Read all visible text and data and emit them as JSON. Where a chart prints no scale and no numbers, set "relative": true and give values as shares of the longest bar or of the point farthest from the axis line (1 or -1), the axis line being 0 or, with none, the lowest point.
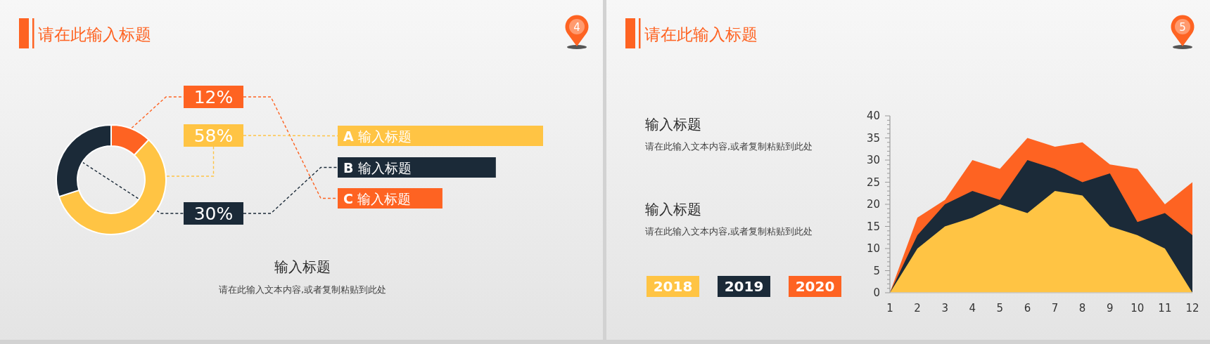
{
  "chart_data": [
    {
      "type": "donut",
      "title": "请在此输入标题",
      "categories": [
        null,
        null,
        null
      ],
      "values": [
        12,
        58,
        30
      ],
      "colors": [
        "#fe6322",
        "#ffc444",
        "#1b2a38"
      ],
      "value_labels": [
        "12%",
        "58%",
        "30%"
      ],
      "annotations": [
        "4",
        "输入标题",
        "请在此输入文本内容,或者复制粘贴到此处"
      ]
    },
    {
      "type": "bar",
      "orientation": "horizontal",
      "relative": true,
      "categories": [
        "**A** 输入标题",
        "**B** 输入标题",
        "**C** 输入标题"
      ],
      "values": [
        1,
        0.77,
        0.51
      ],
      "colors": [
        "#ffc444",
        "#1b2a38",
        "#fe6322"
      ]
    },
    {
      "type": "area",
      "x": [
        1,
        2,
        3,
        4,
        5,
        6,
        7,
        8,
        9,
        10,
        11,
        12
      ],
      "xlim": [
        1,
        12
      ],
      "xticks": [
        1,
        2,
        3,
        4,
        5,
        6,
        7,
        8,
        9,
        10,
        11,
        12
      ],
      "ylim": [
        0,
        40
      ],
      "yticks": [
        0,
        {
          "value": 1,
          "label": null
        },
        {
          "value": 2,
          "label": null
        },
        {
          "value": 3,
          "label": null
        },
        {
          "value": 4,
          "label": null
        },
        5,
        {
          "value": 6,
          "label": null
        },
        {
          "value": 7,
          "label": null
        },
        {
          "value": 8,
          "label": null
        },
        {
          "value": 9,
          "label": null
        },
        10,
        {
          "value": 11,
          "label": null
        },
        {
          "value": 12,
          "label": null
        },
        {
          "value": 13,
          "label": null
        },
        {
          "value": 14,
          "label": null
        },
        15,
        {
          "value": 16,
          "label": null
        },
        {
          "value": 17,
          "label": null
        },
        {
          "value": 18,
          "label": null
        },
        {
          "value": 19,
          "label": null
        },
        20,
        {
          "value": 21,
          "label": null
        },
        {
          "value": 22,
          "label": null
        },
        {
          "value": 23,
          "label": null
        },
        {
          "value": 24,
          "label": null
        },
        25,
        {
          "value": 26,
          "label": null
        },
        {
          "value": 27,
          "label": null
        },
        {
          "value": 28,
          "label": null
        },
        {
          "value": 29,
          "label": null
        },
        30,
        {
          "value": 31,
          "label": null
        },
        {
          "value": 32,
          "label": null
        },
        {
          "value": 33,
          "label": null
        },
        {
          "value": 34,
          "label": null
        },
        35,
        {
          "value": 36,
          "label": null
        },
        {
          "value": 37,
          "label": null
        },
        {
          "value": 38,
          "label": null
        },
        {
          "value": 39,
          "label": null
        },
        40
      ],
      "series": [
        {
          "name": "2018",
          "color": "#ffc444",
          "values": [
            0,
            10,
            15,
            17,
            20,
            18,
            23,
            22,
            15,
            13,
            10,
            0
          ]
        },
        {
          "name": "2019",
          "color": "#1b2a38",
          "values": [
            0,
            13,
            20,
            23,
            21,
            30,
            28,
            25,
            27,
            16,
            18,
            13
          ]
        },
        {
          "name": "2020",
          "color": "#fe6322",
          "values": [
            0,
            17,
            21,
            30,
            28,
            35,
            33,
            34,
            29,
            28,
            20,
            25
          ]
        }
      ],
      "legend": "left",
      "annotations": [
        "请在此输入标题",
        "5",
        "输入标题",
        "请在此输入文本内容,或者复制粘贴到此处",
        "输入标题",
        "请在此输入文本内容,或者复制粘贴到此处"
      ]
    }
  ]
}
